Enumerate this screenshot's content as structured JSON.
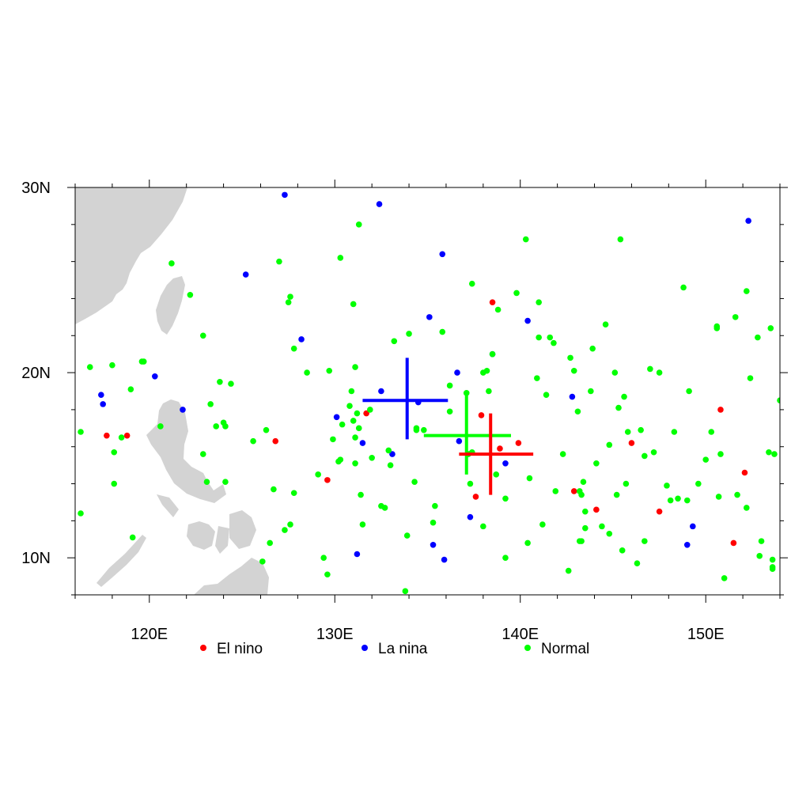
{
  "chart_data": {
    "type": "scatter",
    "title": "",
    "xlabel": "",
    "ylabel": "",
    "xlim": [
      116,
      154
    ],
    "ylim": [
      8,
      30
    ],
    "x_ticks": [
      {
        "value": 120,
        "label": "120E"
      },
      {
        "value": 130,
        "label": "130E"
      },
      {
        "value": 140,
        "label": "140E"
      },
      {
        "value": 150,
        "label": "150E"
      }
    ],
    "y_ticks": [
      {
        "value": 10,
        "label": "10N"
      },
      {
        "value": 20,
        "label": "20N"
      },
      {
        "value": 30,
        "label": "30N"
      }
    ],
    "grid": false,
    "legend_position": "bottom",
    "land_color": "#d3d3d3",
    "series": [
      {
        "name": "El nino",
        "color": "#ff0000",
        "points": [
          [
            117.7,
            16.6
          ],
          [
            118.8,
            16.6
          ],
          [
            126.8,
            16.3
          ],
          [
            129.6,
            14.2
          ],
          [
            131.7,
            17.8
          ],
          [
            137.6,
            13.3
          ],
          [
            137.9,
            17.7
          ],
          [
            138.5,
            23.8
          ],
          [
            138.9,
            15.9
          ],
          [
            139.9,
            16.2
          ],
          [
            142.9,
            13.6
          ],
          [
            144.1,
            12.6
          ],
          [
            146.0,
            16.2
          ],
          [
            147.5,
            12.5
          ],
          [
            150.8,
            18.0
          ],
          [
            151.5,
            10.8
          ],
          [
            152.1,
            14.6
          ]
        ],
        "mean": {
          "lon": 138.4,
          "lat": 15.6,
          "lon_range": [
            136.7,
            140.7
          ],
          "lat_range": [
            13.4,
            17.8
          ]
        }
      },
      {
        "name": "La nina",
        "color": "#0000ff",
        "points": [
          [
            117.4,
            18.8
          ],
          [
            117.5,
            18.3
          ],
          [
            120.3,
            19.8
          ],
          [
            121.8,
            18.0
          ],
          [
            125.2,
            25.3
          ],
          [
            127.3,
            29.6
          ],
          [
            128.2,
            21.8
          ],
          [
            130.1,
            17.6
          ],
          [
            131.2,
            10.2
          ],
          [
            131.5,
            16.2
          ],
          [
            132.4,
            29.1
          ],
          [
            132.5,
            19.0
          ],
          [
            133.1,
            15.6
          ],
          [
            134.5,
            18.4
          ],
          [
            135.1,
            23.0
          ],
          [
            135.3,
            10.7
          ],
          [
            135.9,
            9.9
          ],
          [
            135.8,
            26.4
          ],
          [
            136.6,
            20.0
          ],
          [
            136.7,
            16.3
          ],
          [
            137.3,
            12.2
          ],
          [
            138.5,
            21.0
          ],
          [
            139.2,
            15.1
          ],
          [
            140.4,
            22.8
          ],
          [
            142.8,
            18.7
          ],
          [
            149.0,
            10.7
          ],
          [
            149.3,
            11.7
          ],
          [
            152.3,
            28.2
          ]
        ],
        "mean": {
          "lon": 133.9,
          "lat": 18.5,
          "lon_range": [
            131.5,
            136.1
          ],
          "lat_range": [
            16.4,
            20.8
          ]
        }
      },
      {
        "name": "Normal",
        "color": "#00ff00",
        "points": [
          [
            116.3,
            16.8
          ],
          [
            116.3,
            12.4
          ],
          [
            116.8,
            20.3
          ],
          [
            118.0,
            20.4
          ],
          [
            118.1,
            15.7
          ],
          [
            118.1,
            14.0
          ],
          [
            118.5,
            16.5
          ],
          [
            119.0,
            19.1
          ],
          [
            119.1,
            11.1
          ],
          [
            119.6,
            20.6
          ],
          [
            119.7,
            20.6
          ],
          [
            120.6,
            17.1
          ],
          [
            121.2,
            25.9
          ],
          [
            122.2,
            24.2
          ],
          [
            122.9,
            22.0
          ],
          [
            122.9,
            15.6
          ],
          [
            123.1,
            14.1
          ],
          [
            123.3,
            18.3
          ],
          [
            123.6,
            17.1
          ],
          [
            123.8,
            19.5
          ],
          [
            124.0,
            17.3
          ],
          [
            124.1,
            17.1
          ],
          [
            124.1,
            14.1
          ],
          [
            124.4,
            19.4
          ],
          [
            125.6,
            16.3
          ],
          [
            126.1,
            9.8
          ],
          [
            126.3,
            16.9
          ],
          [
            126.5,
            10.8
          ],
          [
            126.7,
            13.7
          ],
          [
            127.0,
            26.0
          ],
          [
            127.3,
            11.5
          ],
          [
            127.5,
            23.8
          ],
          [
            127.6,
            11.8
          ],
          [
            127.6,
            24.1
          ],
          [
            127.8,
            21.3
          ],
          [
            127.8,
            13.5
          ],
          [
            128.5,
            20.0
          ],
          [
            129.1,
            14.5
          ],
          [
            129.4,
            10.0
          ],
          [
            129.6,
            9.1
          ],
          [
            129.7,
            20.1
          ],
          [
            129.9,
            16.4
          ],
          [
            130.2,
            15.2
          ],
          [
            130.3,
            15.3
          ],
          [
            130.3,
            26.2
          ],
          [
            130.4,
            17.2
          ],
          [
            130.8,
            18.2
          ],
          [
            130.9,
            19.0
          ],
          [
            131.0,
            17.4
          ],
          [
            131.0,
            23.7
          ],
          [
            131.1,
            16.5
          ],
          [
            131.1,
            20.3
          ],
          [
            131.1,
            15.1
          ],
          [
            131.2,
            17.8
          ],
          [
            131.3,
            17.0
          ],
          [
            131.3,
            28.0
          ],
          [
            131.4,
            13.4
          ],
          [
            131.5,
            11.8
          ],
          [
            131.9,
            18.0
          ],
          [
            132.0,
            15.4
          ],
          [
            132.5,
            12.8
          ],
          [
            132.7,
            12.7
          ],
          [
            132.9,
            15.8
          ],
          [
            133.0,
            15.0
          ],
          [
            133.2,
            21.7
          ],
          [
            133.8,
            8.2
          ],
          [
            133.9,
            11.2
          ],
          [
            134.0,
            22.1
          ],
          [
            134.3,
            14.1
          ],
          [
            134.4,
            16.9
          ],
          [
            134.4,
            17.0
          ],
          [
            134.8,
            16.9
          ],
          [
            135.3,
            11.9
          ],
          [
            135.4,
            12.8
          ],
          [
            135.8,
            22.2
          ],
          [
            136.2,
            19.3
          ],
          [
            136.2,
            17.9
          ],
          [
            137.1,
            18.9
          ],
          [
            137.2,
            15.6
          ],
          [
            137.3,
            14.0
          ],
          [
            137.4,
            24.8
          ],
          [
            137.4,
            15.7
          ],
          [
            138.0,
            20.0
          ],
          [
            138.0,
            11.7
          ],
          [
            138.2,
            20.1
          ],
          [
            138.3,
            19.0
          ],
          [
            138.5,
            21.0
          ],
          [
            138.7,
            14.5
          ],
          [
            138.8,
            23.4
          ],
          [
            139.2,
            13.2
          ],
          [
            139.2,
            10.0
          ],
          [
            139.8,
            24.3
          ],
          [
            140.3,
            27.2
          ],
          [
            140.4,
            10.8
          ],
          [
            140.5,
            14.3
          ],
          [
            140.9,
            19.7
          ],
          [
            141.0,
            23.8
          ],
          [
            141.0,
            21.9
          ],
          [
            141.2,
            11.8
          ],
          [
            141.4,
            18.8
          ],
          [
            141.6,
            21.9
          ],
          [
            141.8,
            21.6
          ],
          [
            141.9,
            13.6
          ],
          [
            142.3,
            15.6
          ],
          [
            142.6,
            9.3
          ],
          [
            142.7,
            20.8
          ],
          [
            142.9,
            20.1
          ],
          [
            143.1,
            17.9
          ],
          [
            143.2,
            10.9
          ],
          [
            143.2,
            13.6
          ],
          [
            143.3,
            13.4
          ],
          [
            143.3,
            10.9
          ],
          [
            143.4,
            14.1
          ],
          [
            143.5,
            12.5
          ],
          [
            143.5,
            11.6
          ],
          [
            143.8,
            19.0
          ],
          [
            143.9,
            21.3
          ],
          [
            144.1,
            15.1
          ],
          [
            144.4,
            11.7
          ],
          [
            144.6,
            22.6
          ],
          [
            144.8,
            11.3
          ],
          [
            144.8,
            16.1
          ],
          [
            145.1,
            20.0
          ],
          [
            145.2,
            13.4
          ],
          [
            145.3,
            18.1
          ],
          [
            145.4,
            27.2
          ],
          [
            145.5,
            10.4
          ],
          [
            145.6,
            18.7
          ],
          [
            145.7,
            14.0
          ],
          [
            145.8,
            16.8
          ],
          [
            146.3,
            9.7
          ],
          [
            146.5,
            16.9
          ],
          [
            146.7,
            10.9
          ],
          [
            146.7,
            15.5
          ],
          [
            147.0,
            20.2
          ],
          [
            147.2,
            15.7
          ],
          [
            147.5,
            20.0
          ],
          [
            147.9,
            13.9
          ],
          [
            148.1,
            13.1
          ],
          [
            148.3,
            16.8
          ],
          [
            148.5,
            13.2
          ],
          [
            148.8,
            24.6
          ],
          [
            149.0,
            13.1
          ],
          [
            149.1,
            19.0
          ],
          [
            149.6,
            14.0
          ],
          [
            150.0,
            15.3
          ],
          [
            150.3,
            16.8
          ],
          [
            150.6,
            22.5
          ],
          [
            150.6,
            22.4
          ],
          [
            150.8,
            15.6
          ],
          [
            150.7,
            13.3
          ],
          [
            151.0,
            8.9
          ],
          [
            151.6,
            23.0
          ],
          [
            151.7,
            13.4
          ],
          [
            152.2,
            24.4
          ],
          [
            152.2,
            12.7
          ],
          [
            152.4,
            19.7
          ],
          [
            152.8,
            21.9
          ],
          [
            152.9,
            10.1
          ],
          [
            153.0,
            10.9
          ],
          [
            153.4,
            15.7
          ],
          [
            153.5,
            22.4
          ],
          [
            153.6,
            9.5
          ],
          [
            153.6,
            9.4
          ],
          [
            153.7,
            15.6
          ],
          [
            153.6,
            9.9
          ],
          [
            154.0,
            18.5
          ]
        ],
        "mean": {
          "lon": 137.1,
          "lat": 16.6,
          "lon_range": [
            134.8,
            139.5
          ],
          "lat_range": [
            14.5,
            18.8
          ]
        }
      }
    ]
  }
}
